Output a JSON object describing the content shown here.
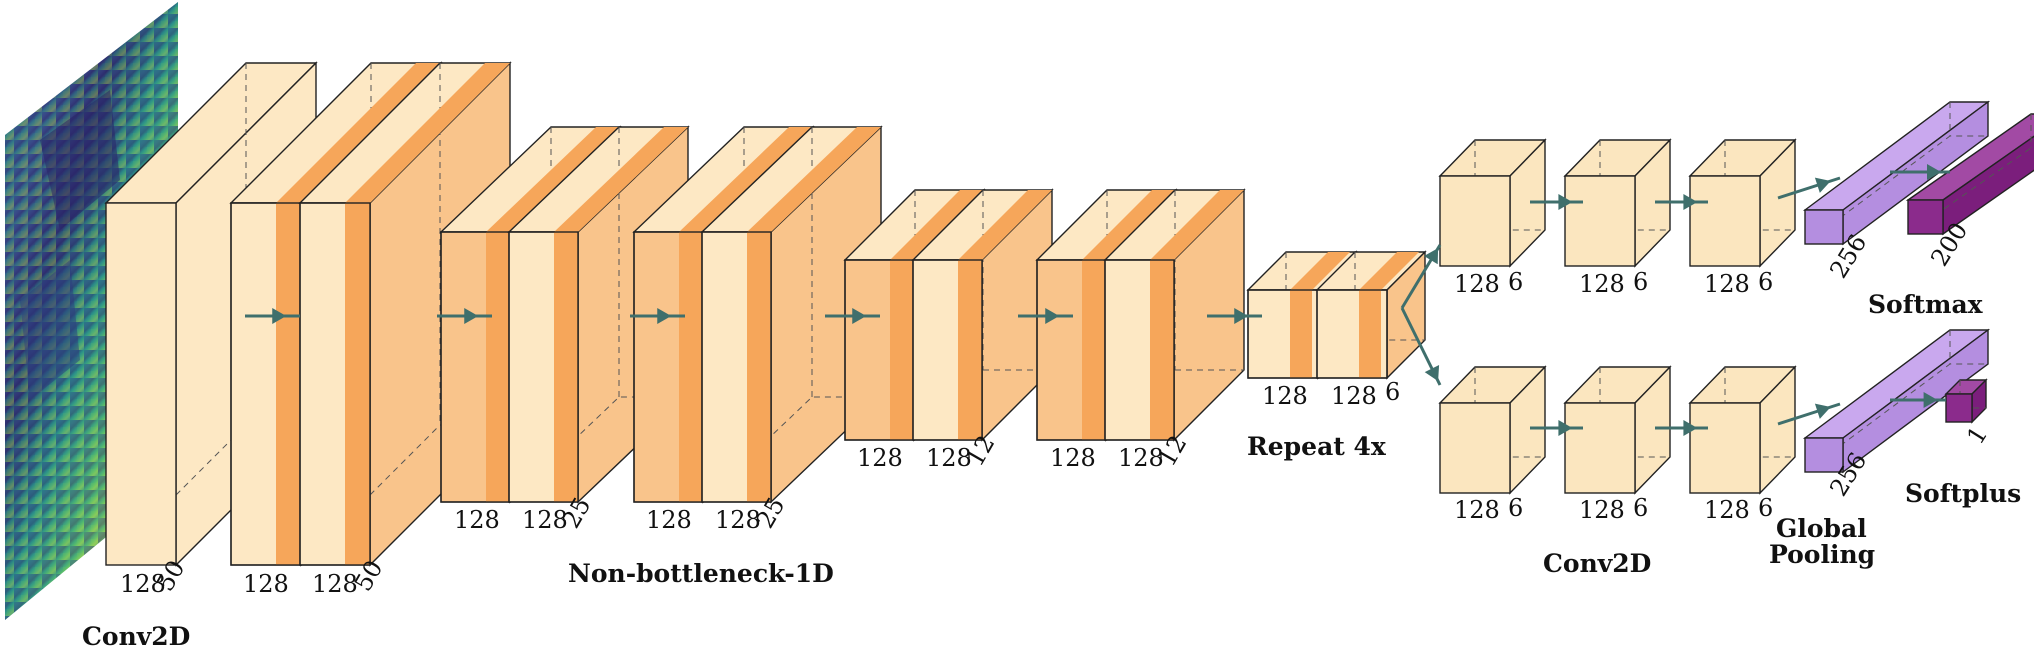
{
  "captions": {
    "input_conv": "Conv2D",
    "nb1d": "Non-bottleneck-1D",
    "repeat": "Repeat 4x",
    "head_conv": "Conv2D",
    "global_pool_line1": "Global",
    "global_pool_line2": "Pooling",
    "softmax": "Softmax",
    "softplus": "Softplus"
  },
  "labels": {
    "b1": [
      "128",
      "50"
    ],
    "b2": [
      "128",
      "128",
      "50"
    ],
    "b3": [
      "128",
      "128",
      "25"
    ],
    "b4": [
      "128",
      "128",
      "25"
    ],
    "b5": [
      "128",
      "128",
      "12"
    ],
    "b6": [
      "128",
      "128",
      "12"
    ],
    "b7": [
      "128",
      "128",
      "6"
    ],
    "t1": [
      "128",
      "6"
    ],
    "t2": [
      "128",
      "6"
    ],
    "t3": [
      "128",
      "6"
    ],
    "u1": [
      "128",
      "6"
    ],
    "u2": [
      "128",
      "6"
    ],
    "u3": [
      "128",
      "6"
    ],
    "top_pool": "256",
    "top_out": "200",
    "bot_pool": "256",
    "bot_out": "1"
  },
  "colors": {
    "light_block": "#fde8c4",
    "orange_block": "#f9c48b",
    "orange_stripe": "#f6a65a",
    "light_head": "#fbe6bf",
    "purple_light": "#b48ee0",
    "purple_dark": "#8b2b8c",
    "arrow": "#3f6f6c"
  }
}
